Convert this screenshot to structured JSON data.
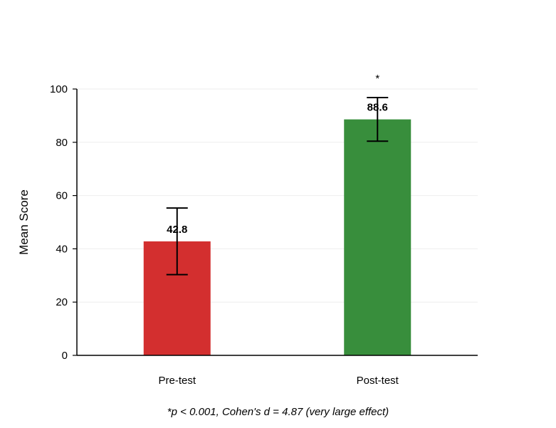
{
  "chart_data": {
    "type": "bar",
    "categories": [
      "Pre-test",
      "Post-test"
    ],
    "values": [
      42.8,
      88.6
    ],
    "error_low": [
      30.3,
      80.4
    ],
    "error_high": [
      55.3,
      96.8
    ],
    "value_labels": [
      "42.8",
      "88.6"
    ],
    "colors": [
      "#d32f2f",
      "#388e3c"
    ],
    "significance": [
      "",
      "*"
    ],
    "ylabel": "Mean Score",
    "ylim": [
      0,
      100
    ],
    "yticks": [
      0,
      20,
      40,
      60,
      80,
      100
    ],
    "grid": true,
    "footnote": "*p < 0.001, Cohen's d = 4.87 (very large effect)"
  }
}
